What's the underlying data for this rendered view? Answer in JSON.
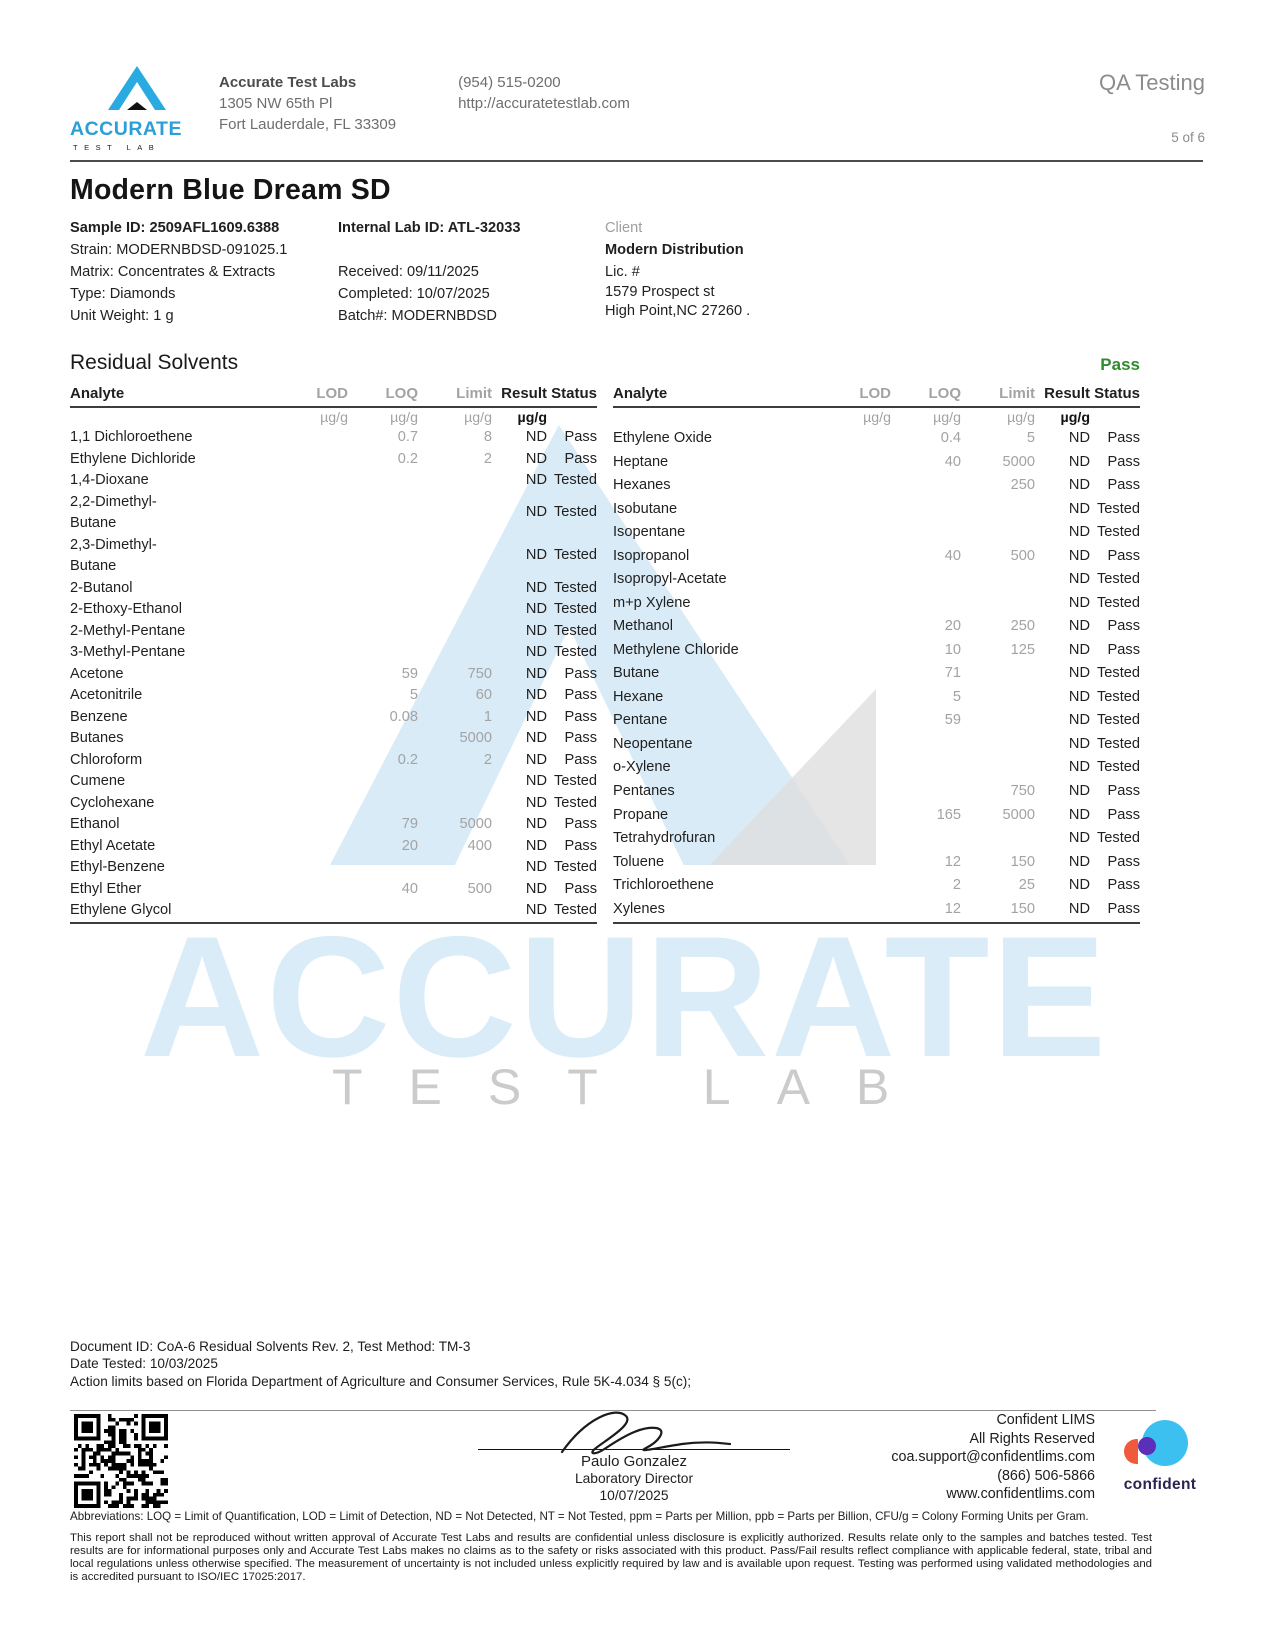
{
  "header": {
    "lab_name": "Accurate Test Labs",
    "lab_address_line1": "1305 NW 65th Pl",
    "lab_address_line2": "Fort Lauderdale, FL 33309",
    "lab_phone": "(954) 515-0200",
    "lab_url": "http://accuratetestlab.com",
    "report_type": "QA Testing",
    "page_indicator": "5 of 6",
    "logo_brand": "ACCURATE",
    "logo_sub": "TEST LAB"
  },
  "sample": {
    "title": "Modern Blue Dream SD",
    "sample_id": "Sample ID: 2509AFL1609.6388",
    "strain": "Strain: MODERNBDSD-091025.1",
    "matrix": "Matrix: Concentrates & Extracts",
    "type": "Type: Diamonds",
    "unit_weight": "Unit Weight: 1 g",
    "internal_lab_id": "Internal Lab ID: ATL-32033",
    "received": "Received: 09/11/2025",
    "completed": "Completed: 10/07/2025",
    "batch": "Batch#: MODERNBDSD"
  },
  "client": {
    "label": "Client",
    "name": "Modern Distribution",
    "license": "Lic. #",
    "address_line1": "1579 Prospect st",
    "address_line2": "High Point,NC 27260 ."
  },
  "section": {
    "title": "Residual Solvents",
    "status": "Pass"
  },
  "tables": {
    "columns": [
      "Analyte",
      "LOD",
      "LOQ",
      "Limit",
      "Result",
      "Status"
    ],
    "units": [
      "",
      "µg/g",
      "µg/g",
      "µg/g",
      "µg/g",
      ""
    ],
    "left_rows": [
      [
        "1,1 Dichloroethene",
        "",
        "0.7",
        "8",
        "ND",
        "Pass"
      ],
      [
        "Ethylene Dichloride",
        "",
        "0.2",
        "2",
        "ND",
        "Pass"
      ],
      [
        "1,4-Dioxane",
        "",
        "",
        "",
        "ND",
        "Tested"
      ],
      [
        "2,2-Dimethyl-\nButane",
        "",
        "",
        "",
        "ND",
        "Tested"
      ],
      [
        "2,3-Dimethyl-\nButane",
        "",
        "",
        "",
        "ND",
        "Tested"
      ],
      [
        "2-Butanol",
        "",
        "",
        "",
        "ND",
        "Tested"
      ],
      [
        "2-Ethoxy-Ethanol",
        "",
        "",
        "",
        "ND",
        "Tested"
      ],
      [
        "2-Methyl-Pentane",
        "",
        "",
        "",
        "ND",
        "Tested"
      ],
      [
        "3-Methyl-Pentane",
        "",
        "",
        "",
        "ND",
        "Tested"
      ],
      [
        "Acetone",
        "",
        "59",
        "750",
        "ND",
        "Pass"
      ],
      [
        "Acetonitrile",
        "",
        "5",
        "60",
        "ND",
        "Pass"
      ],
      [
        "Benzene",
        "",
        "0.08",
        "1",
        "ND",
        "Pass"
      ],
      [
        "Butanes",
        "",
        "",
        "5000",
        "ND",
        "Pass"
      ],
      [
        "Chloroform",
        "",
        "0.2",
        "2",
        "ND",
        "Pass"
      ],
      [
        "Cumene",
        "",
        "",
        "",
        "ND",
        "Tested"
      ],
      [
        "Cyclohexane",
        "",
        "",
        "",
        "ND",
        "Tested"
      ],
      [
        "Ethanol",
        "",
        "79",
        "5000",
        "ND",
        "Pass"
      ],
      [
        "Ethyl Acetate",
        "",
        "20",
        "400",
        "ND",
        "Pass"
      ],
      [
        "Ethyl-Benzene",
        "",
        "",
        "",
        "ND",
        "Tested"
      ],
      [
        "Ethyl Ether",
        "",
        "40",
        "500",
        "ND",
        "Pass"
      ],
      [
        "Ethylene Glycol",
        "",
        "",
        "",
        "ND",
        "Tested"
      ]
    ],
    "right_rows": [
      [
        "Ethylene Oxide",
        "",
        "0.4",
        "5",
        "ND",
        "Pass"
      ],
      [
        "Heptane",
        "",
        "40",
        "5000",
        "ND",
        "Pass"
      ],
      [
        "Hexanes",
        "",
        "",
        "250",
        "ND",
        "Pass"
      ],
      [
        "Isobutane",
        "",
        "",
        "",
        "ND",
        "Tested"
      ],
      [
        "Isopentane",
        "",
        "",
        "",
        "ND",
        "Tested"
      ],
      [
        "Isopropanol",
        "",
        "40",
        "500",
        "ND",
        "Pass"
      ],
      [
        "Isopropyl-Acetate",
        "",
        "",
        "",
        "ND",
        "Tested"
      ],
      [
        "m+p Xylene",
        "",
        "",
        "",
        "ND",
        "Tested"
      ],
      [
        "Methanol",
        "",
        "20",
        "250",
        "ND",
        "Pass"
      ],
      [
        "Methylene Chloride",
        "",
        "10",
        "125",
        "ND",
        "Pass"
      ],
      [
        "Butane",
        "",
        "71",
        "",
        "ND",
        "Tested"
      ],
      [
        "Hexane",
        "",
        "5",
        "",
        "ND",
        "Tested"
      ],
      [
        "Pentane",
        "",
        "59",
        "",
        "ND",
        "Tested"
      ],
      [
        "Neopentane",
        "",
        "",
        "",
        "ND",
        "Tested"
      ],
      [
        "o-Xylene",
        "",
        "",
        "",
        "ND",
        "Tested"
      ],
      [
        "Pentanes",
        "",
        "",
        "750",
        "ND",
        "Pass"
      ],
      [
        "Propane",
        "",
        "165",
        "5000",
        "ND",
        "Pass"
      ],
      [
        "Tetrahydrofuran",
        "",
        "",
        "",
        "ND",
        "Tested"
      ],
      [
        "Toluene",
        "",
        "12",
        "150",
        "ND",
        "Pass"
      ],
      [
        "Trichloroethene",
        "",
        "2",
        "25",
        "ND",
        "Pass"
      ],
      [
        "Xylenes",
        "",
        "12",
        "150",
        "ND",
        "Pass"
      ]
    ]
  },
  "watermark": {
    "text": "ACCURATE",
    "sub": "TEST LAB"
  },
  "footer": {
    "document_id": "Document ID: CoA-6 Residual Solvents Rev. 2, Test Method: TM-3",
    "date_tested": "Date Tested: 10/03/2025",
    "action_limits": "Action limits based on Florida Department of Agriculture and Consumer Services, Rule 5K-4.034 § 5(c);"
  },
  "signature": {
    "name": "Paulo Gonzalez",
    "title": "Laboratory Director",
    "date": "10/07/2025"
  },
  "lims": {
    "line1": "Confident LIMS",
    "line2": "All Rights Reserved",
    "line3": "coa.support@confidentlims.com",
    "line4": "(866) 506-5866",
    "line5": "www.confidentlims.com",
    "wordmark": "confident"
  },
  "legal": {
    "abbreviations": "Abbreviations: LOQ = Limit of Quantification, LOD = Limit of Detection, ND = Not Detected, NT = Not Tested, ppm = Parts per Million, ppb = Parts per Billion, CFU/g = Colony Forming Units per Gram.",
    "disclaimer": "This report shall not be reproduced without written approval of Accurate Test Labs and results are confidential unless disclosure is explicitly authorized. Results relate only to the samples and batches tested. Test results are for informational purposes only and Accurate Test Labs makes no claims as to the safety or risks associated with this product. Pass/Fail results reflect compliance with applicable federal, state, tribal and local regulations unless otherwise specified. The measurement of uncertainty is not included unless explicitly required by law and is available upon request. Testing was performed using validated methodologies and is accredited pursuant to ISO/IEC 17025:2017."
  },
  "colors": {
    "brand_blue": "#29abe2",
    "pass_green": "#2e8b2e",
    "muted_gray": "#a3a3a3",
    "watermark_blue": "#d9ecf8"
  }
}
